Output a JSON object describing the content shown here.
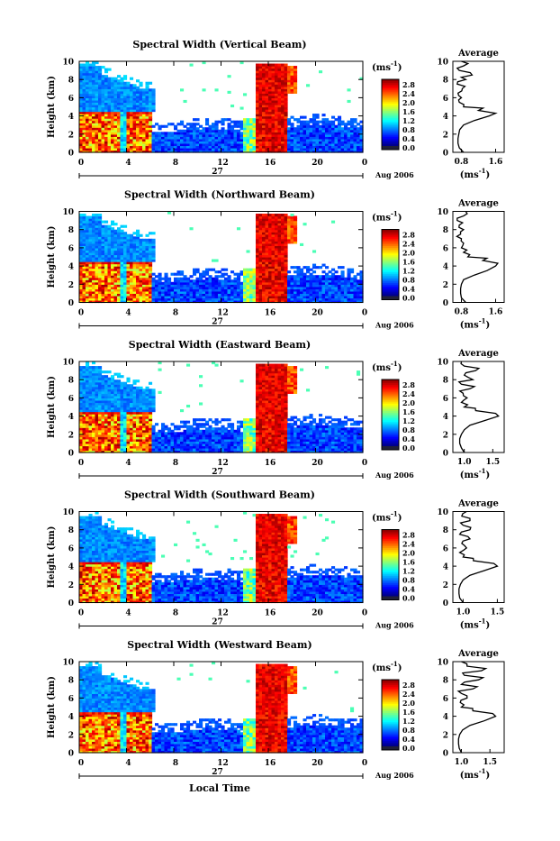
{
  "figure": {
    "common": {
      "ylabel": "Height (km)",
      "cb_unit": "(ms",
      "cb_unit_exp": "-1",
      "cb_ticks": [
        "2.8",
        "2.4",
        "2.0",
        "1.6",
        "1.2",
        "0.8",
        "0.4",
        "0.0"
      ],
      "x_ticks": [
        "0",
        "4",
        "8",
        "12",
        "16",
        "20",
        "0"
      ],
      "date_day": "27",
      "date_label": "Aug 2006",
      "y_ticks": [
        "0",
        "2",
        "4",
        "6",
        "8",
        "10"
      ],
      "avg_title": "Average",
      "avg_xlabel": "(ms",
      "avg_xlabel_exp": "-1"
    },
    "xlabel": "Local Time"
  },
  "chart_data": [
    {
      "type": "heatmap",
      "title": "Spectral Width (Vertical Beam)",
      "xlim": [
        0,
        24
      ],
      "ylim": [
        0,
        10
      ],
      "avg_ticks": [
        "0.8",
        "1.6"
      ],
      "avg_xlim": [
        0.6,
        1.8
      ],
      "avg_profile": {
        "height": [
          0,
          0.5,
          1,
          1.5,
          2,
          2.5,
          3,
          3.5,
          4,
          4.3,
          4.6,
          5,
          5.5,
          6,
          6.5,
          7,
          7.5,
          8,
          8.5,
          9,
          9.5,
          10
        ],
        "width": [
          0.85,
          0.75,
          0.72,
          0.72,
          0.74,
          0.76,
          0.85,
          1.1,
          1.45,
          1.6,
          1.2,
          0.85,
          0.75,
          0.8,
          0.72,
          0.82,
          0.7,
          0.9,
          1.05,
          0.75,
          0.85,
          0.8
        ]
      }
    },
    {
      "type": "heatmap",
      "title": "Spectral Width (Northward Beam)",
      "xlim": [
        0,
        24
      ],
      "ylim": [
        0,
        10
      ],
      "avg_ticks": [
        "0.8",
        "1.6"
      ],
      "avg_xlim": [
        0.6,
        1.8
      ],
      "avg_profile": {
        "height": [
          0,
          0.5,
          1,
          1.5,
          2,
          2.5,
          3,
          3.5,
          4,
          4.3,
          4.6,
          5,
          5.5,
          6,
          6.5,
          7,
          7.5,
          8,
          8.5,
          9,
          9.5,
          10
        ],
        "width": [
          0.9,
          0.8,
          0.78,
          0.78,
          0.8,
          0.85,
          1.1,
          1.4,
          1.6,
          1.65,
          1.3,
          0.95,
          0.85,
          0.8,
          0.85,
          0.8,
          0.78,
          0.85,
          0.75,
          0.7,
          0.85,
          0.9
        ]
      }
    },
    {
      "type": "heatmap",
      "title": "Spectral Width (Eastward Beam)",
      "xlim": [
        0,
        24
      ],
      "ylim": [
        0,
        10
      ],
      "avg_ticks": [
        "1.0",
        "1.5"
      ],
      "avg_xlim": [
        0.8,
        1.7
      ],
      "avg_profile": {
        "height": [
          0,
          0.5,
          1,
          1.5,
          2,
          2.5,
          3,
          3.5,
          4,
          4.3,
          4.6,
          5,
          5.5,
          6,
          6.5,
          7,
          7.5,
          8,
          8.5,
          9,
          9.5,
          10
        ],
        "width": [
          1.0,
          0.95,
          0.92,
          0.92,
          0.95,
          1.0,
          1.1,
          1.35,
          1.6,
          1.55,
          1.2,
          1.0,
          0.95,
          1.05,
          0.98,
          1.1,
          0.95,
          1.15,
          1.0,
          1.2,
          1.0,
          0.95
        ]
      }
    },
    {
      "type": "heatmap",
      "title": "Spectral Width (Southward Beam)",
      "xlim": [
        0,
        24
      ],
      "ylim": [
        0,
        10
      ],
      "avg_ticks": [
        "1.0",
        "1.5"
      ],
      "avg_xlim": [
        0.85,
        1.6
      ],
      "avg_profile": {
        "height": [
          0,
          0.5,
          1,
          1.5,
          2,
          2.5,
          3,
          3.5,
          4,
          4.3,
          4.6,
          5,
          5.5,
          6,
          6.5,
          7,
          7.5,
          8,
          8.5,
          9,
          9.5,
          10
        ],
        "width": [
          1.0,
          0.95,
          0.94,
          0.94,
          0.96,
          1.0,
          1.1,
          1.3,
          1.5,
          1.45,
          1.15,
          1.0,
          0.95,
          1.05,
          0.98,
          1.1,
          0.95,
          1.1,
          1.0,
          1.1,
          0.98,
          1.05
        ]
      }
    },
    {
      "type": "heatmap",
      "title": "Spectral Width (Westward Beam)",
      "xlim": [
        0,
        24
      ],
      "ylim": [
        0,
        10
      ],
      "avg_ticks": [
        "1.0",
        "1.5"
      ],
      "avg_xlim": [
        0.85,
        1.75
      ],
      "avg_profile": {
        "height": [
          0,
          0.5,
          1,
          1.5,
          2,
          2.5,
          3,
          3.5,
          4,
          4.3,
          4.6,
          5,
          5.5,
          6,
          6.5,
          7,
          7.5,
          8,
          8.5,
          9,
          9.5,
          10
        ],
        "width": [
          1.0,
          0.96,
          0.95,
          0.95,
          0.97,
          1.02,
          1.15,
          1.4,
          1.6,
          1.55,
          1.2,
          1.0,
          0.98,
          1.1,
          1.0,
          1.2,
          1.0,
          1.3,
          1.05,
          1.35,
          1.1,
          1.0
        ]
      }
    }
  ]
}
